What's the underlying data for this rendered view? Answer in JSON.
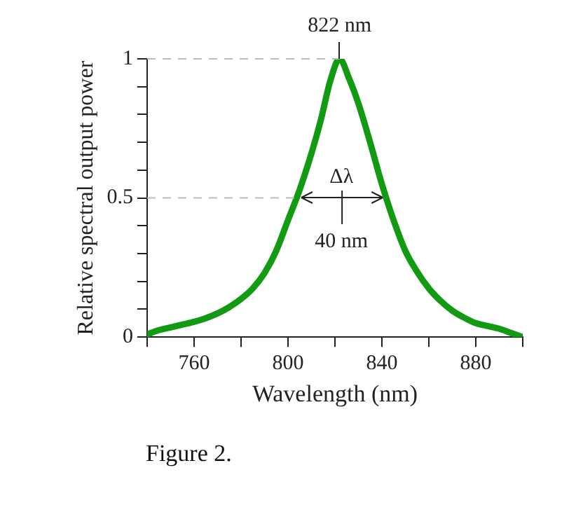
{
  "chart_data": {
    "type": "line",
    "xlabel": "Wavelength (nm)",
    "ylabel": "Relative spectral output power",
    "x": [
      740,
      745,
      750,
      755,
      760,
      765,
      770,
      775,
      780,
      785,
      790,
      795,
      800,
      805,
      810,
      814,
      818,
      822,
      826,
      830,
      835,
      840,
      845,
      850,
      855,
      860,
      865,
      870,
      875,
      880,
      885,
      890,
      895,
      900
    ],
    "series": [
      {
        "color": "#129a12",
        "values": [
          0.01,
          0.025,
          0.035,
          0.045,
          0.055,
          0.068,
          0.085,
          0.108,
          0.137,
          0.175,
          0.23,
          0.31,
          0.42,
          0.53,
          0.66,
          0.78,
          0.92,
          1.0,
          0.93,
          0.84,
          0.7,
          0.55,
          0.42,
          0.31,
          0.235,
          0.175,
          0.13,
          0.095,
          0.07,
          0.05,
          0.04,
          0.03,
          0.015,
          0.0
        ]
      }
    ],
    "xlim": [
      740,
      900
    ],
    "xticks": [
      {
        "value": 740,
        "label": null
      },
      760,
      {
        "value": 780,
        "label": null
      },
      800,
      {
        "value": 820,
        "label": null
      },
      840,
      {
        "value": 860,
        "label": null
      },
      880,
      {
        "value": 900,
        "label": null
      }
    ],
    "ylim": [
      0,
      1
    ],
    "yticks": [
      0,
      {
        "value": 0.1,
        "label": null
      },
      {
        "value": 0.2,
        "label": null
      },
      {
        "value": 0.3,
        "label": null
      },
      {
        "value": 0.4,
        "label": null
      },
      0.5,
      {
        "value": 0.6,
        "label": null
      },
      {
        "value": 0.7,
        "label": null
      },
      {
        "value": 0.8,
        "label": null
      },
      {
        "value": 0.9,
        "label": null
      },
      1
    ],
    "ref_lines": [
      {
        "axis": "y",
        "value": 1,
        "color": "#bbbbbb",
        "line_style": "dashed"
      },
      {
        "axis": "y",
        "value": 0.5,
        "color": "#bbbbbb",
        "line_style": "dashed"
      }
    ],
    "annotations": [
      {
        "text": "822 nm",
        "x": 822,
        "y": 1
      },
      "Δλ",
      "40 nm",
      "Figure 2."
    ],
    "grid": false,
    "legend": false,
    "marker": "none",
    "line_style": "solid"
  }
}
